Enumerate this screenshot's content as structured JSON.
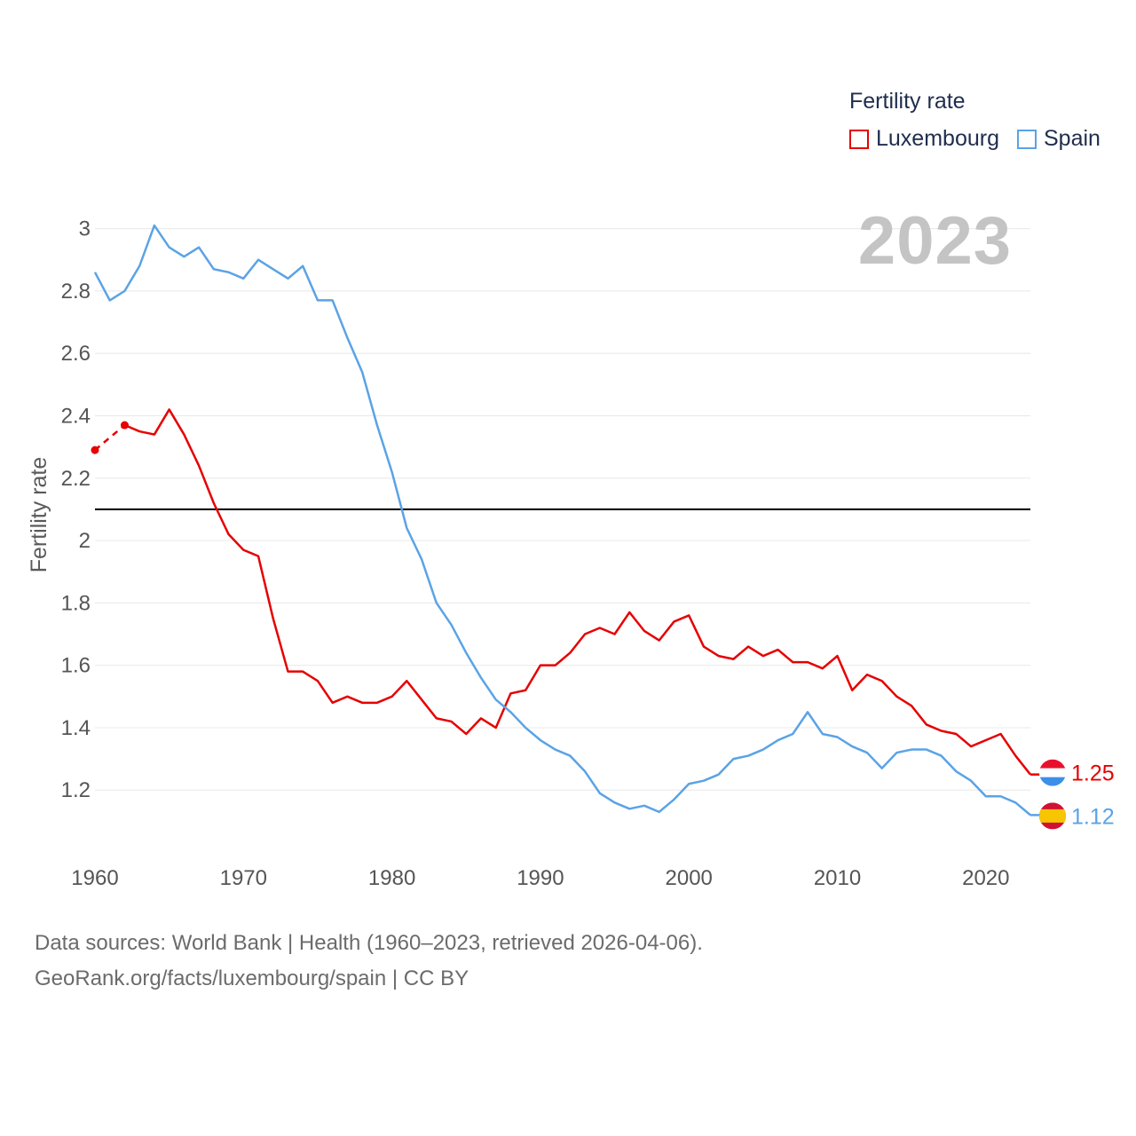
{
  "legend": {
    "title": "Fertility rate",
    "items": [
      {
        "name": "Luxembourg",
        "color": "#e60000"
      },
      {
        "name": "Spain",
        "color": "#5aa3e6"
      }
    ]
  },
  "year_label": "2023",
  "source": {
    "line1": "Data sources: World Bank | Health (1960–2023, retrieved 2026-04-06).",
    "line2": "GeoRank.org/facts/luxembourg/spain | CC BY"
  },
  "chart_data": {
    "type": "line",
    "ylabel": "Fertility rate",
    "xlabel": "",
    "xlim": [
      1960,
      2023
    ],
    "ylim": [
      1.03,
      3.05
    ],
    "x_ticks": [
      1960,
      1970,
      1980,
      1990,
      2000,
      2010,
      2020
    ],
    "y_ticks": [
      1.2,
      1.4,
      1.6,
      1.8,
      2,
      2.2,
      2.4,
      2.6,
      2.8,
      3
    ],
    "reference_line": {
      "value": 2.1,
      "color": "#000000"
    },
    "end_labels": [
      {
        "series": "Luxembourg",
        "value": "1.25",
        "flag": "luxembourg-flag-icon"
      },
      {
        "series": "Spain",
        "value": "1.12",
        "flag": "spain-flag-icon"
      }
    ],
    "series": [
      {
        "name": "Luxembourg",
        "color": "#e60000",
        "estimated_points": [
          [
            1960,
            2.29
          ],
          [
            1962,
            2.37
          ]
        ],
        "x": [
          1962,
          1963,
          1964,
          1965,
          1966,
          1967,
          1968,
          1969,
          1970,
          1971,
          1972,
          1973,
          1974,
          1975,
          1976,
          1977,
          1978,
          1979,
          1980,
          1981,
          1982,
          1983,
          1984,
          1985,
          1986,
          1987,
          1988,
          1989,
          1990,
          1991,
          1992,
          1993,
          1994,
          1995,
          1996,
          1997,
          1998,
          1999,
          2000,
          2001,
          2002,
          2003,
          2004,
          2005,
          2006,
          2007,
          2008,
          2009,
          2010,
          2011,
          2012,
          2013,
          2014,
          2015,
          2016,
          2017,
          2018,
          2019,
          2020,
          2021,
          2022,
          2023
        ],
        "values": [
          2.37,
          2.35,
          2.34,
          2.42,
          2.34,
          2.24,
          2.12,
          2.02,
          1.97,
          1.95,
          1.75,
          1.58,
          1.58,
          1.55,
          1.48,
          1.5,
          1.48,
          1.48,
          1.5,
          1.55,
          1.49,
          1.43,
          1.42,
          1.38,
          1.43,
          1.4,
          1.51,
          1.52,
          1.6,
          1.6,
          1.64,
          1.7,
          1.72,
          1.7,
          1.77,
          1.71,
          1.68,
          1.74,
          1.76,
          1.66,
          1.63,
          1.62,
          1.66,
          1.63,
          1.65,
          1.61,
          1.61,
          1.59,
          1.63,
          1.52,
          1.57,
          1.55,
          1.5,
          1.47,
          1.41,
          1.39,
          1.38,
          1.34,
          1.36,
          1.38,
          1.31,
          1.25
        ]
      },
      {
        "name": "Spain",
        "color": "#5aa3e6",
        "x": [
          1960,
          1961,
          1962,
          1963,
          1964,
          1965,
          1966,
          1967,
          1968,
          1969,
          1970,
          1971,
          1972,
          1973,
          1974,
          1975,
          1976,
          1977,
          1978,
          1979,
          1980,
          1981,
          1982,
          1983,
          1984,
          1985,
          1986,
          1987,
          1988,
          1989,
          1990,
          1991,
          1992,
          1993,
          1994,
          1995,
          1996,
          1997,
          1998,
          1999,
          2000,
          2001,
          2002,
          2003,
          2004,
          2005,
          2006,
          2007,
          2008,
          2009,
          2010,
          2011,
          2012,
          2013,
          2014,
          2015,
          2016,
          2017,
          2018,
          2019,
          2020,
          2021,
          2022,
          2023
        ],
        "values": [
          2.86,
          2.77,
          2.8,
          2.88,
          3.01,
          2.94,
          2.91,
          2.94,
          2.87,
          2.86,
          2.84,
          2.9,
          2.87,
          2.84,
          2.88,
          2.77,
          2.77,
          2.65,
          2.54,
          2.37,
          2.22,
          2.04,
          1.94,
          1.8,
          1.73,
          1.64,
          1.56,
          1.49,
          1.45,
          1.4,
          1.36,
          1.33,
          1.31,
          1.26,
          1.19,
          1.16,
          1.14,
          1.15,
          1.13,
          1.17,
          1.22,
          1.23,
          1.25,
          1.3,
          1.31,
          1.33,
          1.36,
          1.38,
          1.45,
          1.38,
          1.37,
          1.34,
          1.32,
          1.27,
          1.32,
          1.33,
          1.33,
          1.31,
          1.26,
          1.23,
          1.18,
          1.18,
          1.16,
          1.12
        ]
      }
    ]
  }
}
